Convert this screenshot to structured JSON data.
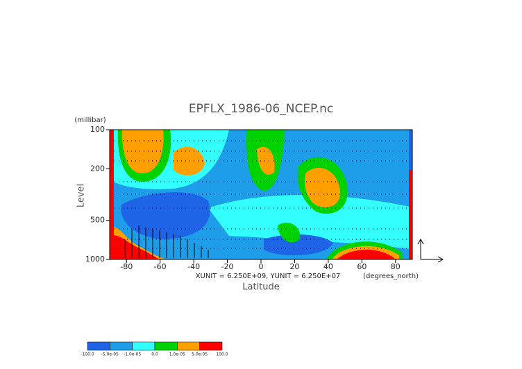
{
  "chart_data": {
    "type": "contour",
    "title": "EPFLX_1986-06_NCEP.nc",
    "y_label": "Level",
    "y_unit": "(millibar)",
    "x_label": "Latitude",
    "x_unit": "(degrees_north)",
    "annotation": "XUNIT = 6.250E+09, YUNIT = 6.250E+07",
    "xlim": [
      -90,
      90
    ],
    "xticks": [
      -80,
      -60,
      -40,
      -20,
      0,
      20,
      40,
      60,
      80
    ],
    "ylim": [
      1000,
      100
    ],
    "yticks": [
      100,
      200,
      500,
      1000
    ],
    "ylog": true,
    "colorbar": {
      "colors": [
        "#1e64e6",
        "#1e9ee8",
        "#33ffff",
        "#00d200",
        "#ffa000",
        "#ff0000"
      ],
      "ticks": [
        {
          "value": -100,
          "label": "-100.0"
        },
        {
          "value": -5e-05,
          "label": "-5.0e-05"
        },
        {
          "value": -1e-05,
          "label": "-1.0e-05"
        },
        {
          "value": 0,
          "label": "0.0"
        },
        {
          "value": 1e-05,
          "label": "1.0e-05"
        },
        {
          "value": 5e-05,
          "label": "5.0e-05"
        },
        {
          "value": 100,
          "label": "100.0"
        }
      ]
    }
  }
}
